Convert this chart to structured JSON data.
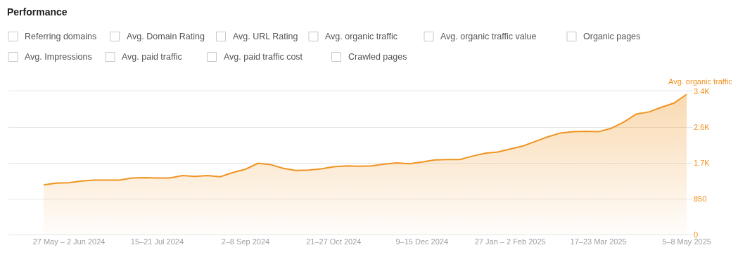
{
  "chart_data": {
    "type": "area",
    "title": "Performance",
    "ylabel": "Avg. organic traffic",
    "annotations": [
      "Referring domains",
      "Avg. Domain Rating",
      "Avg. URL Rating",
      "Avg. organic traffic",
      "Avg. organic traffic value",
      "Organic pages",
      "Avg. Impressions",
      "Avg. paid traffic",
      "Avg. paid traffic cost",
      "Crawled pages"
    ],
    "categories": [
      null,
      null,
      "27 May – 2 Jun 2024",
      null,
      null,
      null,
      null,
      null,
      null,
      "15–21 Jul 2024",
      null,
      null,
      null,
      null,
      null,
      null,
      "2–8 Sep 2024",
      null,
      null,
      null,
      null,
      null,
      null,
      "21–27 Oct 2024",
      null,
      null,
      null,
      null,
      null,
      null,
      "9–15 Dec 2024",
      null,
      null,
      null,
      null,
      null,
      null,
      "27 Jan – 2 Feb 2025",
      null,
      null,
      null,
      null,
      null,
      null,
      "17–23 Mar 2025",
      null,
      null,
      null,
      null,
      null,
      null,
      "5–8 May 2025"
    ],
    "series": [
      {
        "color": "#ef9421",
        "values": [
          1180,
          1220,
          1230,
          1270,
          1290,
          1290,
          1290,
          1340,
          1350,
          1340,
          1340,
          1400,
          1380,
          1400,
          1370,
          1470,
          1550,
          1690,
          1660,
          1570,
          1520,
          1530,
          1560,
          1610,
          1630,
          1620,
          1630,
          1670,
          1700,
          1680,
          1720,
          1770,
          1780,
          1780,
          1860,
          1930,
          1960,
          2030,
          2100,
          2210,
          2320,
          2410,
          2440,
          2450,
          2440,
          2520,
          2670,
          2860,
          2910,
          3020,
          3120,
          3330
        ]
      }
    ],
    "ylim": [
      0,
      3400
    ],
    "yticks": [
      0,
      850,
      {
        "value": 1700,
        "label": "1.7K"
      },
      {
        "value": 2550,
        "label": "2.6K"
      },
      {
        "value": 3400,
        "label": "3.4K"
      }
    ],
    "grid": "y"
  }
}
